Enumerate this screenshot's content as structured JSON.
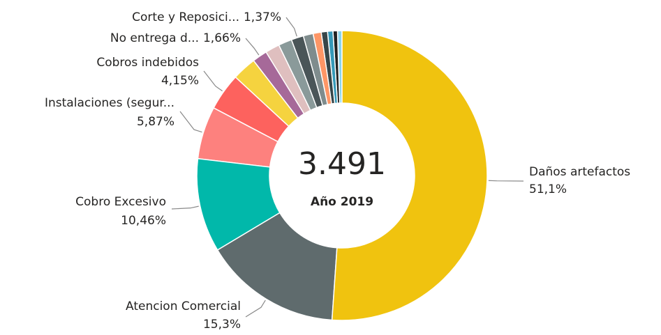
{
  "chart_data": {
    "type": "donut",
    "center_label": "3.491",
    "subtitle": "Año 2019",
    "categories": [
      "Daños artefactos",
      "Atencion Comercial",
      "Cobro Excesivo",
      "Instalaciones (segur...",
      "Cobros indebidos",
      null,
      "No entrega d...",
      null,
      null,
      "Corte y Reposici...",
      null,
      null,
      null,
      null,
      null,
      null
    ],
    "values": [
      51.1,
      15.3,
      10.46,
      5.87,
      4.15,
      2.69,
      1.66,
      1.6,
      1.5,
      1.37,
      1.1,
      0.9,
      0.7,
      0.6,
      0.5,
      0.5
    ],
    "value_labels": [
      "51,1%",
      "15,3%",
      "10,46%",
      "5,87%",
      "4,15%",
      null,
      "1,66%",
      null,
      null,
      "1,37%",
      null,
      null,
      null,
      null,
      null,
      null
    ],
    "colors": [
      "#f0c30f",
      "#5f6b6d",
      "#01b8aa",
      "#fd817e",
      "#fd625e",
      "#f5d33f",
      "#a66999",
      "#dfbfbf",
      "#8a9a9a",
      "#4a5558",
      "#7f8c8d",
      "#fe9666",
      "#374649",
      "#3599b8",
      "#222222",
      "#8ad4eb"
    ]
  }
}
